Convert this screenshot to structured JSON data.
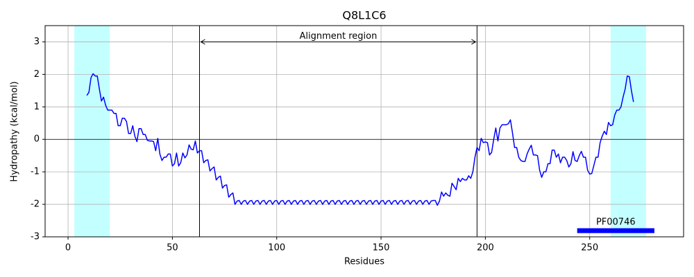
{
  "chart_data": {
    "type": "line",
    "title": "Q8L1C6",
    "x_label": "Residues",
    "y_label": "Hydropathy (kcal/mol)",
    "xlim": [
      -11,
      295
    ],
    "ylim": [
      -3,
      3.5
    ],
    "xticks": [
      0,
      50,
      100,
      150,
      200,
      250
    ],
    "yticks": [
      -3,
      -2,
      -1,
      0,
      1,
      2,
      3
    ],
    "grid": true,
    "x": [
      9,
      10,
      11,
      12,
      13,
      14,
      15,
      16,
      17,
      18,
      19,
      20,
      21,
      22,
      23,
      24,
      25,
      26,
      27,
      28,
      29,
      30,
      31,
      32,
      33,
      34,
      35,
      36,
      37,
      38,
      39,
      40,
      41,
      42,
      43,
      44,
      45,
      46,
      47,
      48,
      49,
      50,
      51,
      52,
      53,
      54,
      55,
      56,
      57,
      58,
      59,
      60,
      61,
      62,
      63,
      64,
      65,
      66,
      67,
      68,
      69,
      70,
      71,
      72,
      73,
      74,
      75,
      76,
      77,
      78,
      79,
      80,
      81,
      82,
      83,
      84,
      85,
      86,
      87,
      88,
      89,
      90,
      91,
      92,
      93,
      94,
      95,
      96,
      97,
      98,
      99,
      100,
      101,
      102,
      103,
      104,
      105,
      106,
      107,
      108,
      109,
      110,
      111,
      112,
      113,
      114,
      115,
      116,
      117,
      118,
      119,
      120,
      121,
      122,
      123,
      124,
      125,
      126,
      127,
      128,
      129,
      130,
      131,
      132,
      133,
      134,
      135,
      136,
      137,
      138,
      139,
      140,
      141,
      142,
      143,
      144,
      145,
      146,
      147,
      148,
      149,
      150,
      151,
      152,
      153,
      154,
      155,
      156,
      157,
      158,
      159,
      160,
      161,
      162,
      163,
      164,
      165,
      166,
      167,
      168,
      169,
      170,
      171,
      172,
      173,
      174,
      175,
      176,
      177,
      178,
      179,
      180,
      181,
      182,
      183,
      184,
      185,
      186,
      187,
      188,
      189,
      190,
      191,
      192,
      193,
      194,
      195,
      196,
      197,
      198,
      199,
      200,
      201,
      202,
      203,
      204,
      205,
      206,
      207,
      208,
      209,
      210,
      211,
      212,
      213,
      214,
      215,
      216,
      217,
      218,
      219,
      220,
      221,
      222,
      223,
      224,
      225,
      226,
      227,
      228,
      229,
      230,
      231,
      232,
      233,
      234,
      235,
      236,
      237,
      238,
      239,
      240,
      241,
      242,
      243,
      244,
      245,
      246,
      247,
      248,
      249,
      250,
      251,
      252,
      253,
      254,
      255,
      256,
      257,
      258,
      259,
      260,
      261,
      262,
      263,
      264,
      265,
      266,
      267,
      268,
      269,
      270,
      271
    ],
    "series": [
      {
        "color": "#0000ff",
        "values": [
          1.35,
          1.45,
          1.9,
          2.02,
          1.95,
          1.95,
          1.55,
          1.18,
          1.3,
          1.05,
          0.9,
          0.9,
          0.9,
          0.8,
          0.8,
          0.42,
          0.42,
          0.65,
          0.65,
          0.55,
          0.18,
          0.18,
          0.42,
          0.1,
          -0.07,
          0.33,
          0.33,
          0.15,
          0.15,
          -0.03,
          -0.05,
          -0.05,
          -0.07,
          -0.35,
          0.03,
          -0.45,
          -0.65,
          -0.55,
          -0.55,
          -0.45,
          -0.45,
          -0.82,
          -0.75,
          -0.42,
          -0.82,
          -0.72,
          -0.42,
          -0.57,
          -0.48,
          -0.17,
          -0.3,
          -0.32,
          -0.05,
          -0.42,
          -0.35,
          -0.35,
          -0.72,
          -0.65,
          -0.63,
          -0.97,
          -0.9,
          -0.85,
          -1.25,
          -1.17,
          -1.13,
          -1.5,
          -1.42,
          -1.4,
          -1.78,
          -1.7,
          -1.65,
          -2.0,
          -1.9,
          -1.88,
          -2.0,
          -1.9,
          -1.88,
          -2.0,
          -1.9,
          -1.88,
          -2.0,
          -1.9,
          -1.88,
          -2.0,
          -1.9,
          -1.88,
          -2.0,
          -1.9,
          -1.88,
          -2.0,
          -1.9,
          -1.88,
          -2.0,
          -1.9,
          -1.88,
          -2.0,
          -1.9,
          -1.88,
          -2.0,
          -1.9,
          -1.88,
          -2.0,
          -1.9,
          -1.88,
          -2.0,
          -1.9,
          -1.88,
          -2.0,
          -1.9,
          -1.88,
          -2.0,
          -1.9,
          -1.88,
          -2.0,
          -1.9,
          -1.88,
          -2.0,
          -1.9,
          -1.88,
          -2.0,
          -1.9,
          -1.88,
          -2.0,
          -1.9,
          -1.88,
          -2.0,
          -1.9,
          -1.88,
          -2.0,
          -1.9,
          -1.88,
          -2.0,
          -1.9,
          -1.88,
          -2.0,
          -1.9,
          -1.88,
          -2.0,
          -1.9,
          -1.88,
          -2.0,
          -1.9,
          -1.88,
          -2.0,
          -1.9,
          -1.88,
          -2.0,
          -1.9,
          -1.88,
          -2.0,
          -1.9,
          -1.88,
          -2.0,
          -1.9,
          -1.88,
          -2.0,
          -1.9,
          -1.88,
          -2.0,
          -1.9,
          -1.88,
          -2.0,
          -1.9,
          -1.88,
          -2.0,
          -1.9,
          -1.88,
          -1.88,
          -2.03,
          -1.9,
          -1.62,
          -1.75,
          -1.65,
          -1.72,
          -1.75,
          -1.35,
          -1.45,
          -1.55,
          -1.2,
          -1.3,
          -1.2,
          -1.25,
          -1.25,
          -1.12,
          -1.2,
          -1.0,
          -0.55,
          -0.25,
          -0.35,
          0.03,
          -0.1,
          -0.08,
          -0.1,
          -0.48,
          -0.4,
          0.0,
          0.35,
          -0.05,
          0.35,
          0.45,
          0.45,
          0.45,
          0.48,
          0.6,
          0.2,
          -0.25,
          -0.25,
          -0.55,
          -0.65,
          -0.68,
          -0.68,
          -0.45,
          -0.3,
          -0.18,
          -0.48,
          -0.48,
          -0.5,
          -0.95,
          -1.17,
          -1.0,
          -1.0,
          -0.75,
          -0.75,
          -0.33,
          -0.33,
          -0.55,
          -0.45,
          -0.72,
          -0.55,
          -0.55,
          -0.65,
          -0.85,
          -0.75,
          -0.38,
          -0.65,
          -0.68,
          -0.5,
          -0.37,
          -0.55,
          -0.55,
          -0.95,
          -1.07,
          -1.05,
          -0.8,
          -0.55,
          -0.55,
          -0.1,
          0.1,
          0.25,
          0.15,
          0.52,
          0.42,
          0.45,
          0.75,
          0.9,
          0.9,
          1.0,
          1.3,
          1.55,
          1.95,
          1.93,
          1.5,
          1.15
        ]
      }
    ],
    "shaded_regions": [
      {
        "start": 3,
        "end": 20
      },
      {
        "start": 260,
        "end": 277
      }
    ],
    "shaded_color": "#c4ffff",
    "vlines": [
      63,
      196
    ],
    "hline": 0,
    "annotation": {
      "text": "Alignment region",
      "x_start": 63,
      "x_end": 196,
      "y": 3
    },
    "domain": {
      "label": "PF00746",
      "start": 244,
      "end": 281,
      "y": -2.81,
      "color": "#0000ff"
    }
  }
}
